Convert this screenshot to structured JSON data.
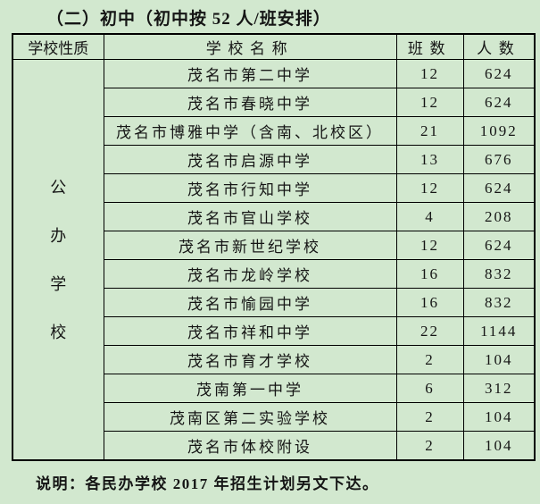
{
  "page": {
    "background": "#d2e8cf",
    "title": "（二）初中（初中按 52 人/班安排）",
    "note": "说明：各民办学校 2017 年招生计划另文下达。"
  },
  "table": {
    "headers": [
      "学校性质",
      "学校名称",
      "班数",
      "人数"
    ],
    "school_type_vertical": [
      "公",
      "办",
      "学",
      "校"
    ],
    "rows": [
      {
        "name": "茂名市第二中学",
        "classes": "12",
        "students": "624"
      },
      {
        "name": "茂名市春晓中学",
        "classes": "12",
        "students": "624"
      },
      {
        "name": "茂名市博雅中学（含南、北校区）",
        "classes": "21",
        "students": "1092"
      },
      {
        "name": "茂名市启源中学",
        "classes": "13",
        "students": "676"
      },
      {
        "name": "茂名市行知中学",
        "classes": "12",
        "students": "624"
      },
      {
        "name": "茂名市官山学校",
        "classes": "4",
        "students": "208"
      },
      {
        "name": "茂名市新世纪学校",
        "classes": "12",
        "students": "624"
      },
      {
        "name": "茂名市龙岭学校",
        "classes": "16",
        "students": "832"
      },
      {
        "name": "茂名市愉园中学",
        "classes": "16",
        "students": "832"
      },
      {
        "name": "茂名市祥和中学",
        "classes": "22",
        "students": "1144"
      },
      {
        "name": "茂名市育才学校",
        "classes": "2",
        "students": "104"
      },
      {
        "name": "茂南第一中学",
        "classes": "6",
        "students": "312"
      },
      {
        "name": "茂南区第二实验学校",
        "classes": "2",
        "students": "104"
      },
      {
        "name": "茂名市体校附设",
        "classes": "2",
        "students": "104"
      }
    ]
  }
}
